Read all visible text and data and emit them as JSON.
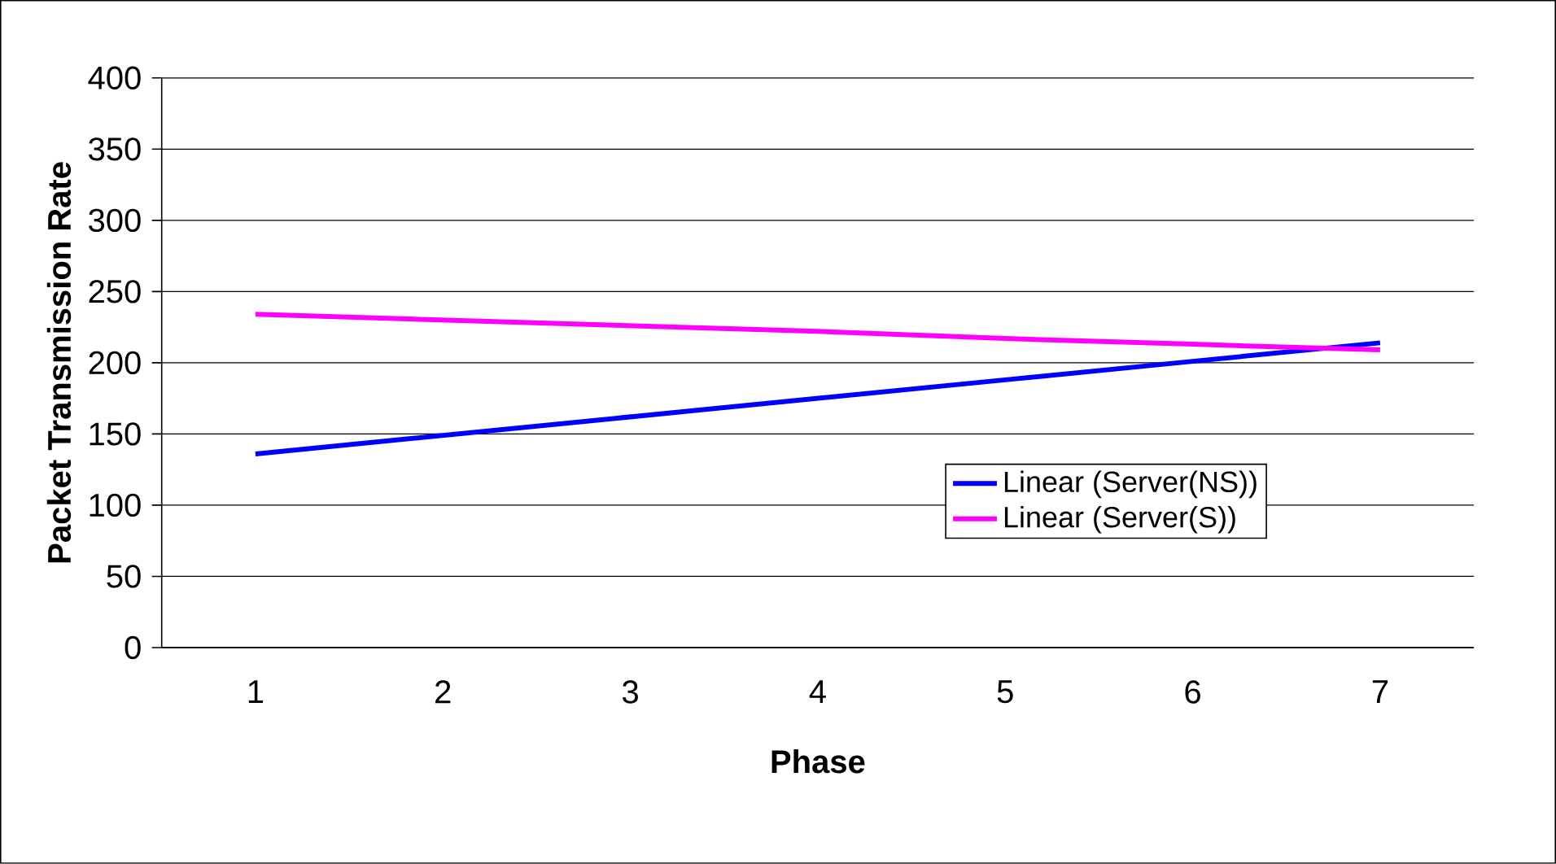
{
  "chart_data": {
    "type": "line",
    "xlabel": "Phase",
    "ylabel": "Packet Transmission Rate",
    "categories": [
      "1",
      "2",
      "3",
      "4",
      "5",
      "6",
      "7"
    ],
    "series": [
      {
        "name": "Linear (Server(NS))",
        "color": "#0000ff",
        "values": [
          136,
          149,
          162,
          175,
          188,
          201,
          214
        ]
      },
      {
        "name": "Linear (Server(S))",
        "color": "#ff00ff",
        "values": [
          234,
          230,
          226,
          222,
          217,
          213,
          209
        ]
      }
    ],
    "ylim": [
      0,
      400
    ],
    "yticks": [
      0,
      50,
      100,
      150,
      200,
      250,
      300,
      350,
      400
    ],
    "grid": "y",
    "legend": "right",
    "marker": "none",
    "line_style": "solid"
  }
}
